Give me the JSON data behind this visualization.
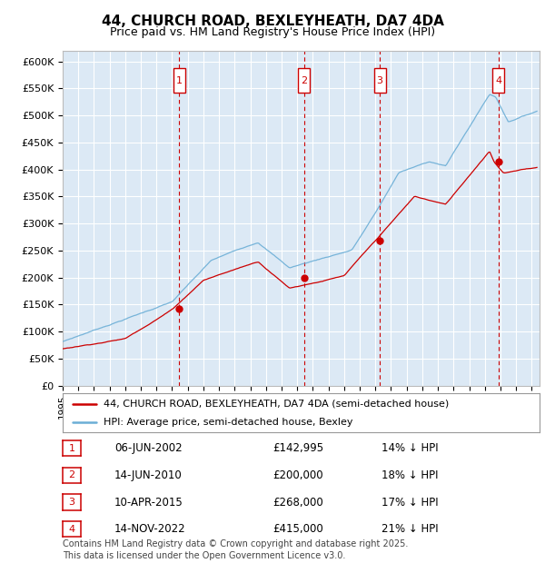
{
  "title": "44, CHURCH ROAD, BEXLEYHEATH, DA7 4DA",
  "subtitle": "Price paid vs. HM Land Registry's House Price Index (HPI)",
  "legend_property": "44, CHURCH ROAD, BEXLEYHEATH, DA7 4DA (semi-detached house)",
  "legend_hpi": "HPI: Average price, semi-detached house, Bexley",
  "transactions": [
    {
      "num": 1,
      "date": "06-JUN-2002",
      "price": 142995,
      "year": 2002.44,
      "hpi_pct": "14% ↓ HPI"
    },
    {
      "num": 2,
      "date": "14-JUN-2010",
      "price": 200000,
      "year": 2010.45,
      "hpi_pct": "18% ↓ HPI"
    },
    {
      "num": 3,
      "date": "10-APR-2015",
      "price": 268000,
      "year": 2015.28,
      "hpi_pct": "17% ↓ HPI"
    },
    {
      "num": 4,
      "date": "14-NOV-2022",
      "price": 415000,
      "year": 2022.87,
      "hpi_pct": "21% ↓ HPI"
    }
  ],
  "hpi_color": "#6baed6",
  "property_color": "#cc0000",
  "dashed_color": "#cc0000",
  "background_color": "#dce9f5",
  "grid_color": "#ffffff",
  "ylim": [
    0,
    620000
  ],
  "yticks": [
    0,
    50000,
    100000,
    150000,
    200000,
    250000,
    300000,
    350000,
    400000,
    450000,
    500000,
    550000,
    600000
  ],
  "footer": "Contains HM Land Registry data © Crown copyright and database right 2025.\nThis data is licensed under the Open Government Licence v3.0.",
  "footnote_fontsize": 7,
  "title_fontsize": 11,
  "subtitle_fontsize": 9
}
